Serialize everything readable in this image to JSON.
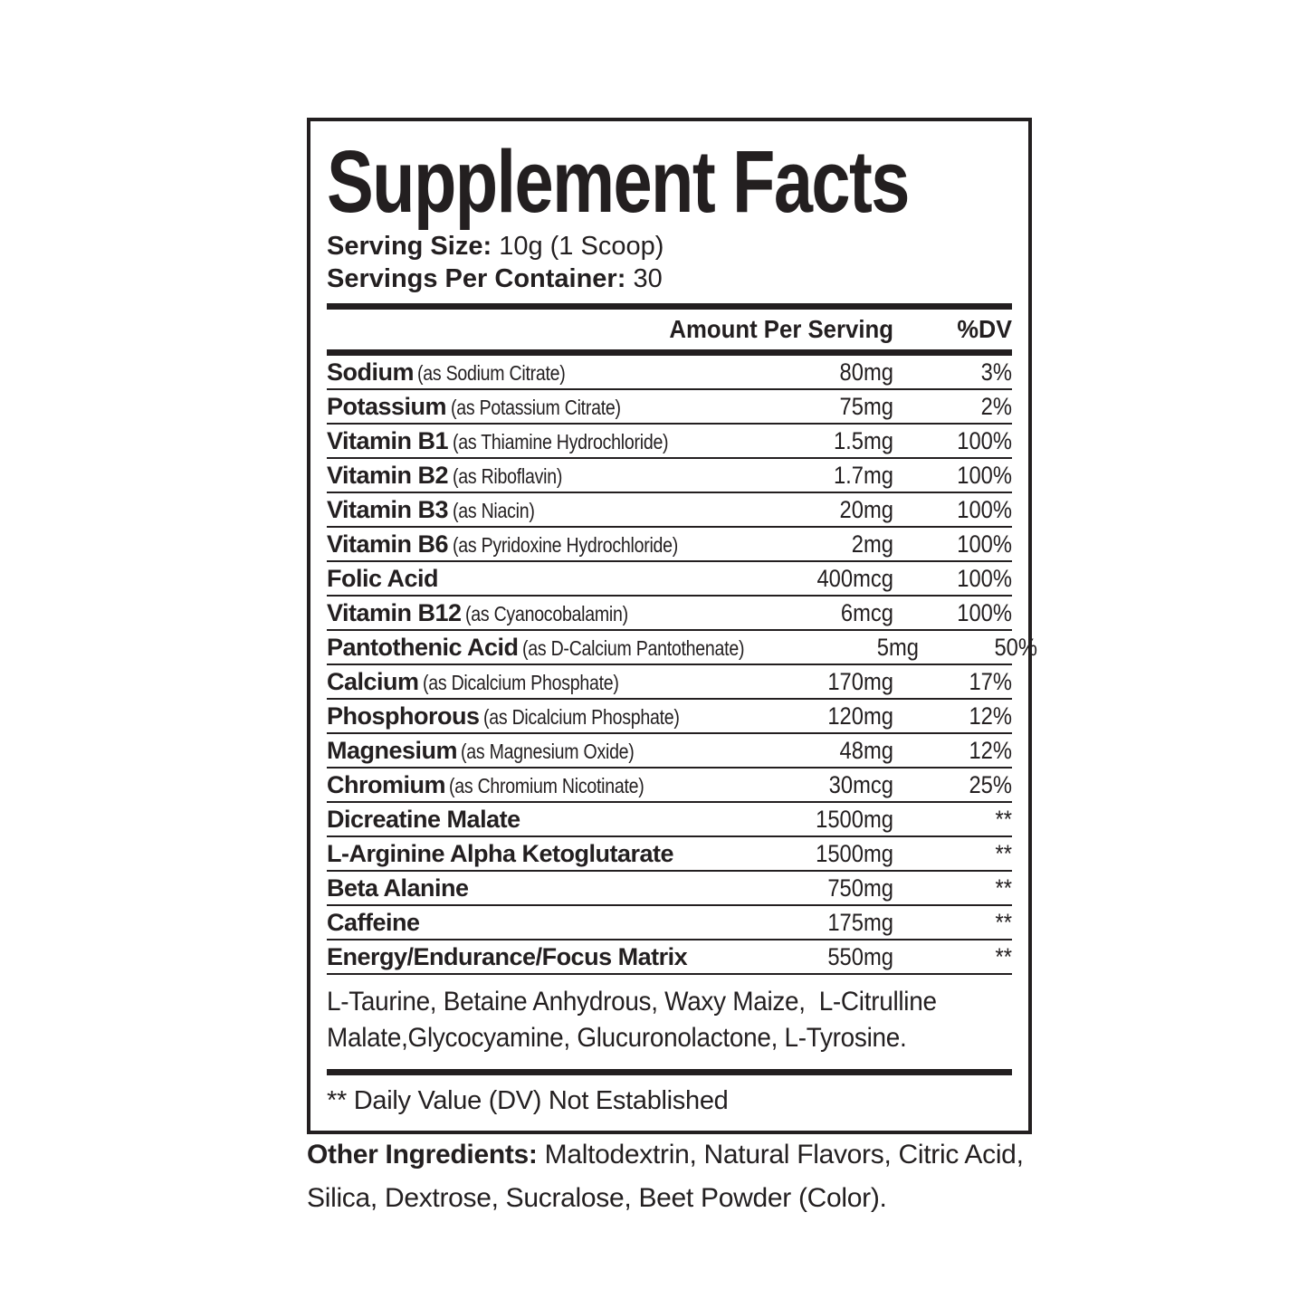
{
  "label": {
    "title": "Supplement Facts",
    "serving_size_label": "Serving Size:",
    "serving_size_value": "10g (1 Scoop)",
    "servings_label": "Servings Per Container:",
    "servings_value": "30",
    "header": {
      "amount": "Amount Per Serving",
      "dv": "%DV"
    },
    "rows": [
      {
        "name": "Sodium",
        "note": "(as Sodium Citrate)",
        "amount": "80mg",
        "dv": "3%"
      },
      {
        "name": "Potassium",
        "note": "(as Potassium Citrate)",
        "amount": "75mg",
        "dv": "2%"
      },
      {
        "name": "Vitamin B1",
        "note": "(as Thiamine Hydrochloride)",
        "amount": "1.5mg",
        "dv": "100%"
      },
      {
        "name": "Vitamin B2",
        "note": "(as Riboflavin)",
        "amount": "1.7mg",
        "dv": "100%"
      },
      {
        "name": "Vitamin B3",
        "note": "(as Niacin)",
        "amount": "20mg",
        "dv": "100%"
      },
      {
        "name": "Vitamin B6",
        "note": "(as Pyridoxine Hydrochloride)",
        "amount": "2mg",
        "dv": "100%"
      },
      {
        "name": "Folic Acid",
        "note": "",
        "amount": "400mcg",
        "dv": "100%"
      },
      {
        "name": "Vitamin B12",
        "note": "(as Cyanocobalamin)",
        "amount": "6mcg",
        "dv": "100%"
      },
      {
        "name": "Pantothenic Acid",
        "note": "(as D-Calcium Pantothenate)",
        "amount": "5mg",
        "dv": "50%"
      },
      {
        "name": "Calcium",
        "note": "(as Dicalcium Phosphate)",
        "amount": "170mg",
        "dv": "17%"
      },
      {
        "name": "Phosphorous",
        "note": "(as Dicalcium Phosphate)",
        "amount": "120mg",
        "dv": "12%"
      },
      {
        "name": "Magnesium",
        "note": "(as Magnesium Oxide)",
        "amount": "48mg",
        "dv": "12%"
      },
      {
        "name": "Chromium",
        "note": "(as Chromium Nicotinate)",
        "amount": "30mcg",
        "dv": "25%"
      },
      {
        "name": "Dicreatine Malate",
        "note": "",
        "amount": "1500mg",
        "dv": "**"
      },
      {
        "name": "L-Arginine Alpha Ketoglutarate",
        "note": "",
        "amount": "1500mg",
        "dv": "**"
      },
      {
        "name": "Beta Alanine",
        "note": "",
        "amount": "750mg",
        "dv": "**"
      },
      {
        "name": "Caffeine",
        "note": "",
        "amount": "175mg",
        "dv": "**"
      },
      {
        "name": "Energy/Endurance/Focus Matrix",
        "note": "",
        "amount": "550mg",
        "dv": "**"
      }
    ],
    "matrix_lines": [
      "L-Taurine, Betaine Anhydrous, Waxy Maize,  L-Citrulline",
      "Malate,Glycocyamine, Glucuronolactone, L-Tyrosine."
    ],
    "footnote": "** Daily Value (DV) Not Established",
    "other_ingredients": {
      "label": "Other Ingredients:",
      "line1": "Maltodextrin, Natural Flavors, Citric Acid,",
      "line2": "Silica, Dextrose, Sucralose, Beet Powder (Color)."
    }
  },
  "colors": {
    "ink": "#231f20",
    "background": "#ffffff"
  }
}
